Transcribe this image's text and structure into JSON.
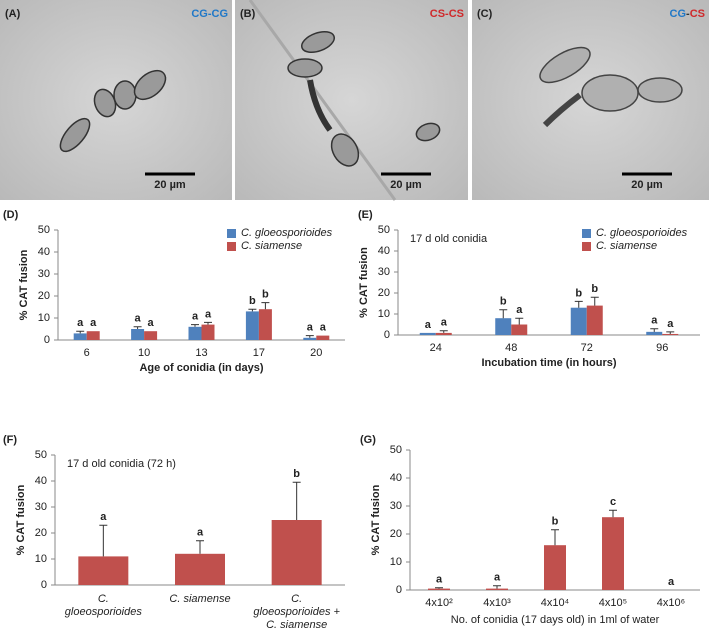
{
  "panels": [
    {
      "label": "(A)",
      "tag": [
        {
          "text": "CG",
          "color": "#1f78c8"
        },
        {
          "text": "-",
          "color": "#1f78c8"
        },
        {
          "text": "CG",
          "color": "#1f78c8"
        }
      ],
      "scale_bar": "20 µm"
    },
    {
      "label": "(B)",
      "tag": [
        {
          "text": "CS",
          "color": "#d0282a"
        },
        {
          "text": "-",
          "color": "#d0282a"
        },
        {
          "text": "CS",
          "color": "#d0282a"
        }
      ],
      "scale_bar": "20 µm"
    },
    {
      "label": "(C)",
      "tag": [
        {
          "text": "CG",
          "color": "#1f78c8"
        },
        {
          "text": "-",
          "color": "#333333"
        },
        {
          "text": "CS",
          "color": "#d0282a"
        }
      ],
      "scale_bar": "20 µm"
    }
  ],
  "chart_data": [
    {
      "type": "bar",
      "panel_label": "(D)",
      "x_label": "Age of conidia (in days)",
      "y_label": "% CAT fusion",
      "categories": [
        "6",
        "10",
        "13",
        "17",
        "20"
      ],
      "series": [
        {
          "name": "C. gloeosporioides",
          "color": "#4f81bd",
          "values": [
            3,
            5,
            6,
            13,
            1
          ],
          "errors": [
            1,
            1,
            1,
            1,
            1
          ],
          "letters": [
            "a",
            "a",
            "a",
            "b",
            "a"
          ]
        },
        {
          "name": "C. siamense",
          "color": "#c0504d",
          "values": [
            4,
            4,
            7,
            14,
            2
          ],
          "errors": [
            0,
            0,
            1,
            3,
            0
          ],
          "letters": [
            "a",
            "a",
            "a",
            "b",
            "a"
          ]
        }
      ],
      "ylim": [
        0,
        50
      ],
      "yticks": [
        0,
        10,
        20,
        30,
        40,
        50
      ],
      "legend": "upper right"
    },
    {
      "type": "bar",
      "panel_label": "(E)",
      "x_label": "Incubation time (in hours)",
      "y_label": "% CAT fusion",
      "annotation": "17 d old conidia",
      "categories": [
        "24",
        "48",
        "72",
        "96"
      ],
      "series": [
        {
          "name": "C. gloeosporioides",
          "color": "#4f81bd",
          "values": [
            1,
            8,
            13,
            1.5
          ],
          "errors": [
            0,
            4,
            3,
            1.5
          ],
          "letters": [
            "a",
            "b",
            "b",
            "a"
          ]
        },
        {
          "name": "C. siamense",
          "color": "#c0504d",
          "values": [
            1,
            5,
            14,
            0.5
          ],
          "errors": [
            1,
            3,
            4,
            1
          ],
          "letters": [
            "a",
            "a",
            "b",
            "a"
          ]
        }
      ],
      "ylim": [
        0,
        50
      ],
      "yticks": [
        0,
        10,
        20,
        30,
        40,
        50
      ],
      "legend": "upper right"
    },
    {
      "type": "bar",
      "panel_label": "(F)",
      "y_label": "% CAT fusion",
      "annotation": "17 d old conidia (72 h)",
      "categories": [
        [
          "C.",
          "gloeosporioides"
        ],
        [
          "C. siamense"
        ],
        [
          "C.",
          "gloeosporioides +",
          "C. siamense"
        ]
      ],
      "color": "#c0504d",
      "values": [
        11,
        12,
        25
      ],
      "errors": [
        12,
        5,
        14.5
      ],
      "letters": [
        "a",
        "a",
        "b"
      ],
      "ylim": [
        0,
        50
      ],
      "yticks": [
        0,
        10,
        20,
        30,
        40,
        50
      ]
    },
    {
      "type": "bar",
      "panel_label": "(G)",
      "x_label": "No. of conidia (17 days old) in 1ml of water",
      "y_label": "% CAT fusion",
      "categories": [
        "4x10²",
        "4x10³",
        "4x10⁴",
        "4x10⁵",
        "4x10⁶"
      ],
      "color": "#c0504d",
      "values": [
        0.5,
        0.5,
        16,
        26,
        0
      ],
      "errors": [
        0.3,
        1,
        5.5,
        2.5,
        0
      ],
      "letters": [
        "a",
        "a",
        "b",
        "c",
        "a"
      ],
      "ylim": [
        0,
        50
      ],
      "yticks": [
        0,
        10,
        20,
        30,
        40,
        50
      ]
    }
  ]
}
